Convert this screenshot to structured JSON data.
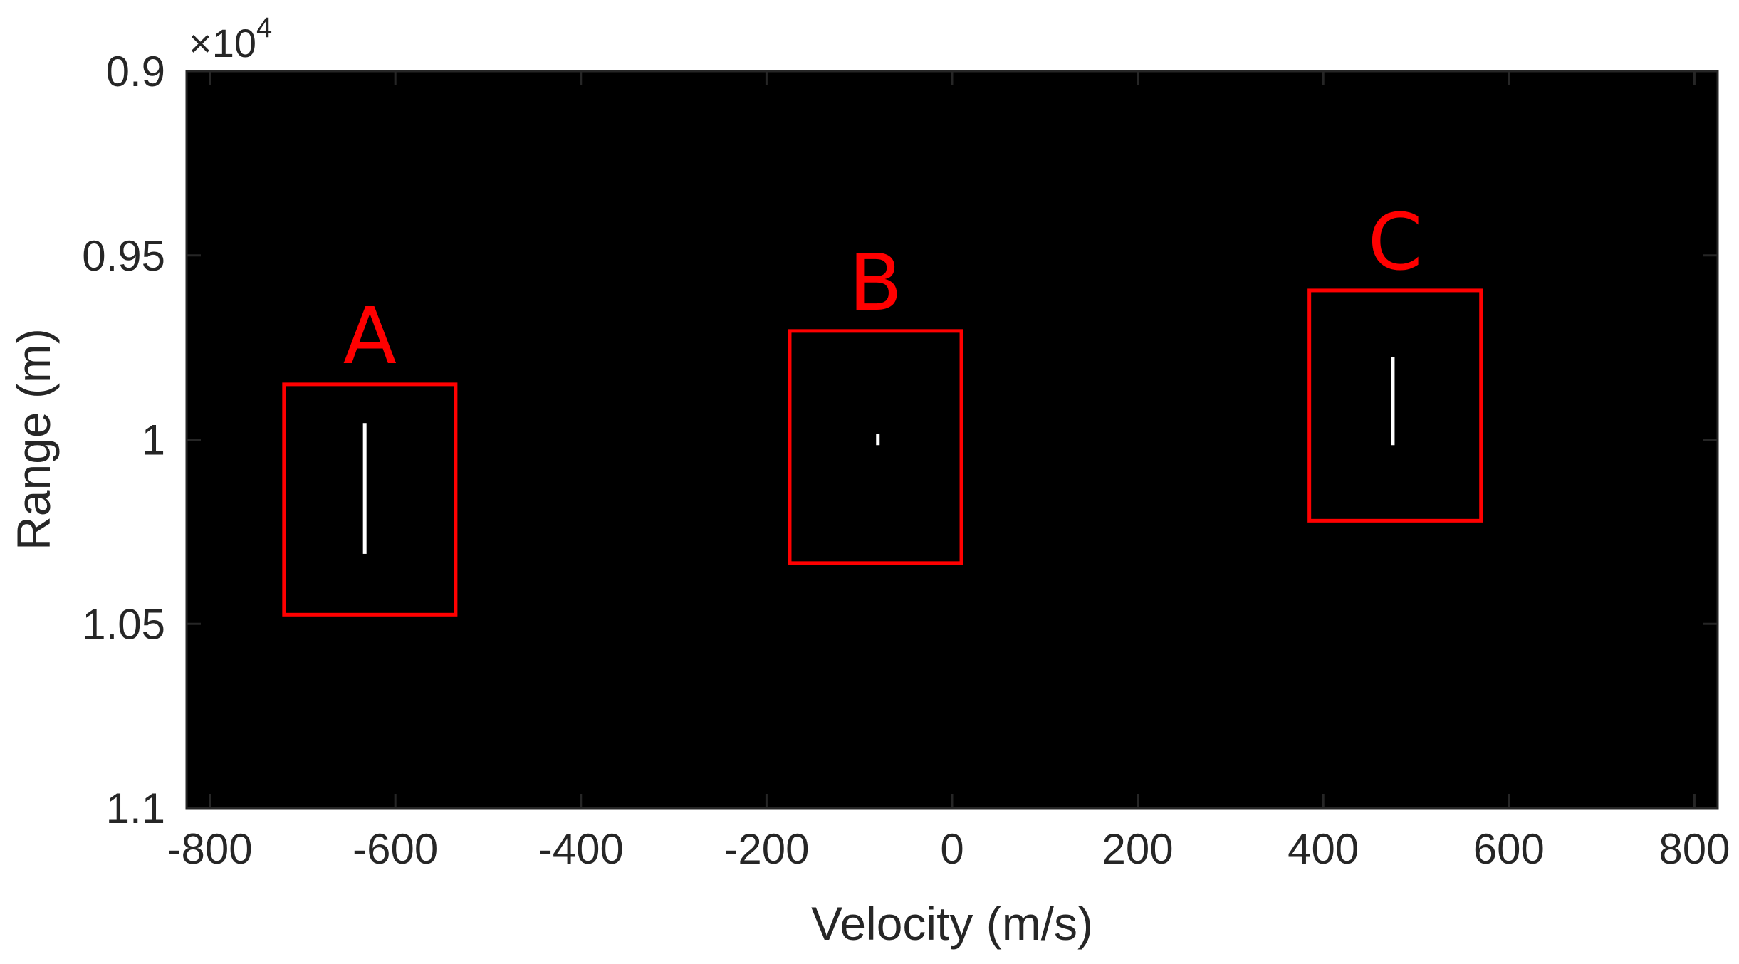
{
  "chart_data": {
    "type": "scatter",
    "title": "",
    "xlabel": "Velocity (m/s)",
    "ylabel": "Range (m)",
    "xlim": [
      -825,
      825
    ],
    "ylim": [
      9000,
      11000
    ],
    "y_reversed": true,
    "y_exponent_label": {
      "prefix": "×10",
      "power": "4"
    },
    "xticks": [
      -800,
      -600,
      -400,
      -200,
      0,
      200,
      400,
      600,
      800
    ],
    "xtick_labels": [
      "-800",
      "-600",
      "-400",
      "-200",
      "0",
      "200",
      "400",
      "600",
      "800"
    ],
    "yticks": [
      9000,
      9500,
      10000,
      10500,
      11000
    ],
    "ytick_labels": [
      "0.9",
      "0.95",
      "1",
      "1.05",
      "1.1"
    ],
    "grid": false,
    "background_color": "#000000",
    "point_color": "#ffffff",
    "box_color": "#ff0000",
    "targets": [
      {
        "label": "A",
        "velocity": -633,
        "range_start": 9955,
        "range_end": 10310,
        "box": {
          "v_min": -720,
          "v_max": -535,
          "r_min": 9850,
          "r_max": 10475
        }
      },
      {
        "label": "B",
        "velocity": -80,
        "range_start": 9985,
        "range_end": 10015,
        "box": {
          "v_min": -175,
          "v_max": 10,
          "r_min": 9705,
          "r_max": 10335
        }
      },
      {
        "label": "C",
        "velocity": 475,
        "range_start": 9775,
        "range_end": 10015,
        "box": {
          "v_min": 385,
          "v_max": 570,
          "r_min": 9595,
          "r_max": 10220
        }
      }
    ]
  }
}
